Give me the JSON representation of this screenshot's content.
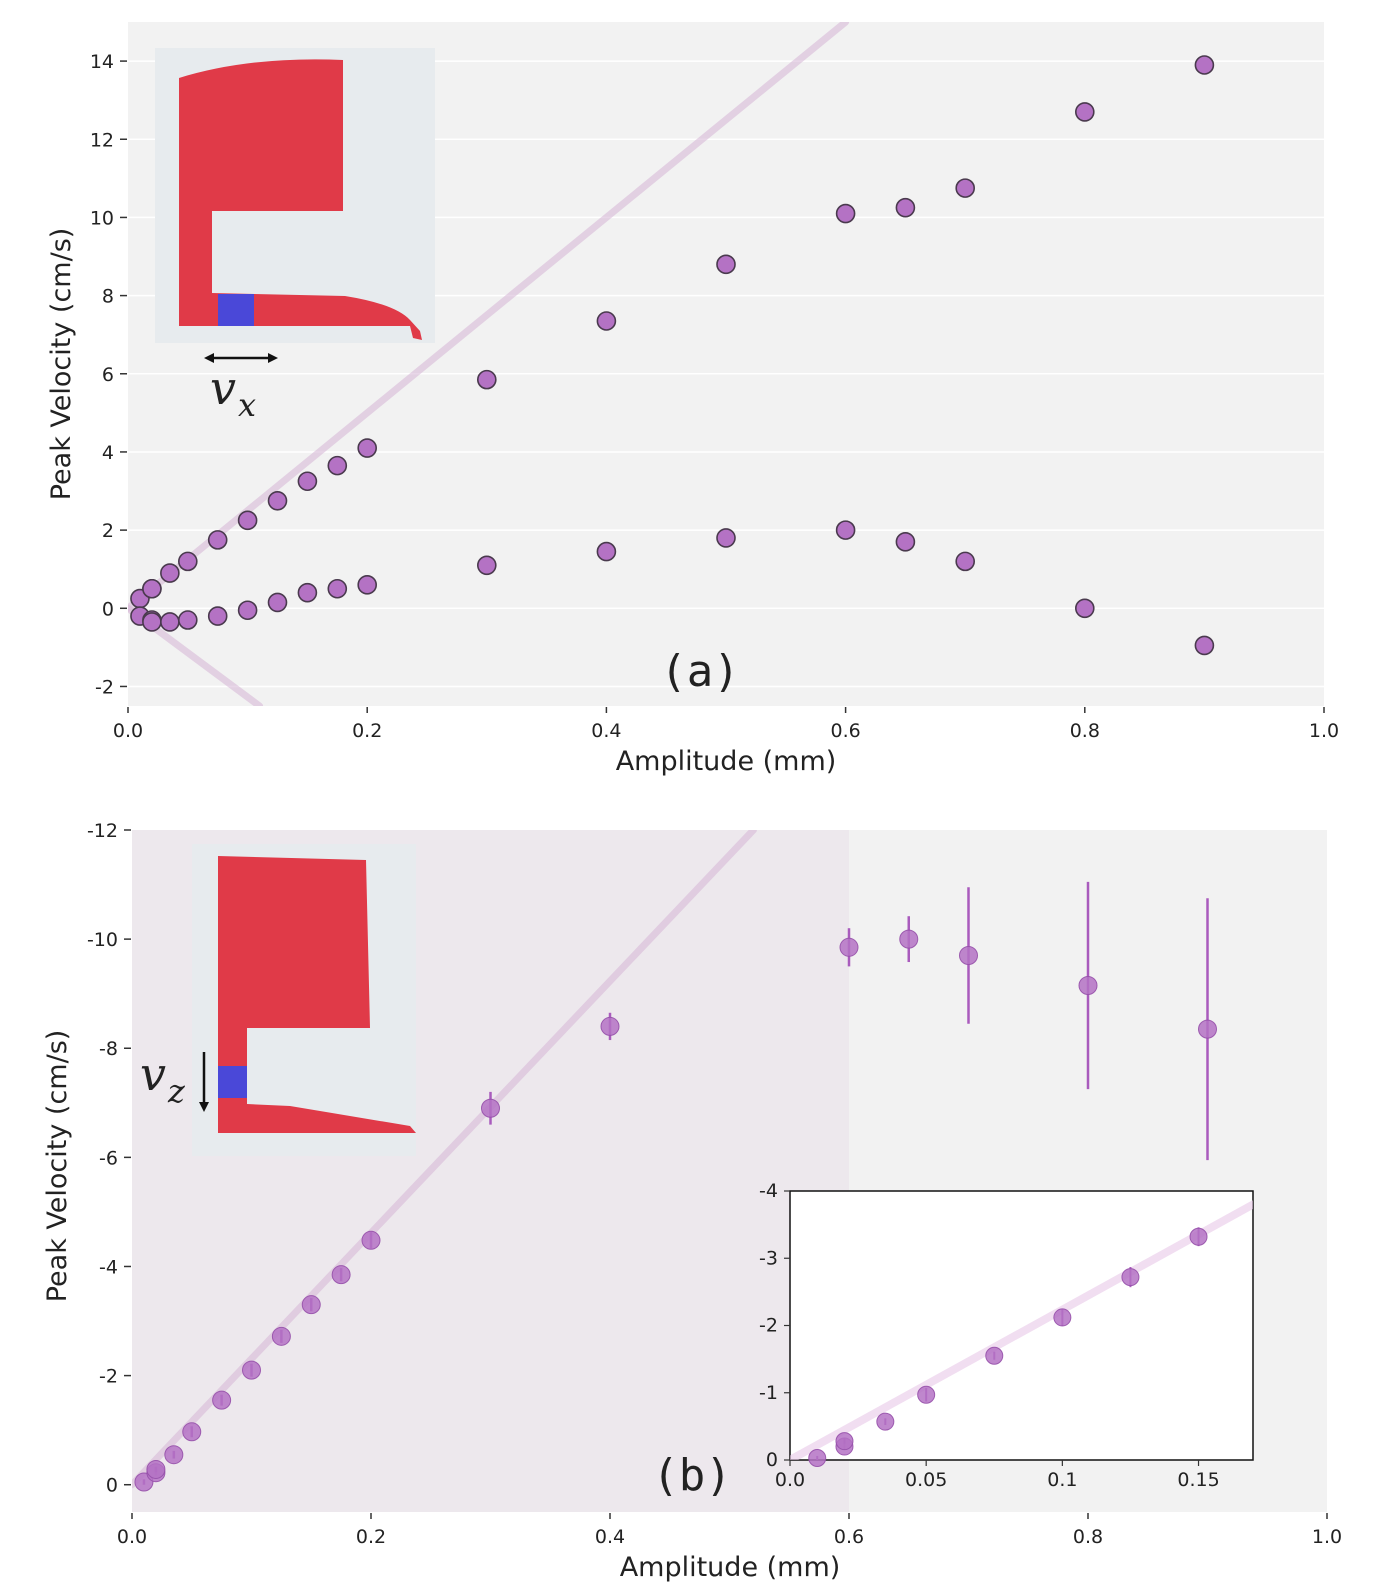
{
  "chart_data": [
    {
      "type": "scatter",
      "panel_label": "(a)",
      "xlabel": "Amplitude (mm)",
      "ylabel": "Peak Velocity (cm/s)",
      "xlim": [
        0,
        1.0
      ],
      "ylim": [
        -2.5,
        15
      ],
      "xticks": [
        "0.0",
        "0.2",
        "0.4",
        "0.6",
        "0.8",
        "1.0"
      ],
      "yticks": [
        "-2",
        "0",
        "2",
        "4",
        "6",
        "8",
        "10",
        "12",
        "14"
      ],
      "grid": "horizontal",
      "inset_symbol": "v",
      "inset_subscript": "x",
      "reference_lines": [
        {
          "x": [
            0,
            0.6
          ],
          "y": [
            0,
            15
          ]
        },
        {
          "x": [
            0,
            0.11
          ],
          "y": [
            0,
            -2.5
          ]
        }
      ],
      "series": [
        {
          "x": [
            0.01,
            0.02,
            0.02,
            0.035,
            0.05,
            0.075,
            0.1,
            0.125,
            0.15,
            0.175,
            0.2,
            0.3,
            0.4,
            0.5,
            0.6,
            0.65,
            0.7,
            0.8,
            0.9
          ],
          "y": [
            0.25,
            0.5,
            0.5,
            0.9,
            1.2,
            1.75,
            2.25,
            2.75,
            3.25,
            3.65,
            4.1,
            5.85,
            7.35,
            8.8,
            10.1,
            10.25,
            10.75,
            12.7,
            13.9
          ]
        },
        {
          "x": [
            0.01,
            0.02,
            0.02,
            0.035,
            0.05,
            0.075,
            0.1,
            0.125,
            0.15,
            0.175,
            0.2,
            0.3,
            0.4,
            0.5,
            0.6,
            0.65,
            0.7,
            0.8,
            0.9
          ],
          "y": [
            -0.2,
            -0.3,
            -0.35,
            -0.35,
            -0.3,
            -0.2,
            -0.05,
            0.15,
            0.4,
            0.5,
            0.6,
            1.1,
            1.45,
            1.8,
            2.0,
            1.7,
            1.2,
            0.0,
            -0.95
          ]
        }
      ]
    },
    {
      "type": "scatter",
      "panel_label": "(b)",
      "xlabel": "Amplitude (mm)",
      "ylabel": "Peak Velocity (cm/s)",
      "xlim": [
        0,
        1.0
      ],
      "ylim": [
        0.5,
        -12
      ],
      "xticks": [
        "0.0",
        "0.2",
        "0.4",
        "0.6",
        "0.8",
        "1.0"
      ],
      "yticks": [
        "0",
        "-2",
        "-4",
        "-6",
        "-8",
        "-10",
        "-12"
      ],
      "shaded_region": [
        0,
        0.6
      ],
      "inset_symbol": "v",
      "inset_subscript": "z",
      "reference_line": {
        "x": [
          0,
          0.52
        ],
        "y": [
          0,
          -12
        ]
      },
      "series": [
        {
          "x": [
            0.01,
            0.02,
            0.02,
            0.035,
            0.05,
            0.075,
            0.1,
            0.125,
            0.15,
            0.175,
            0.2,
            0.3,
            0.4,
            0.6,
            0.65,
            0.7,
            0.8,
            0.9
          ],
          "y": [
            -0.05,
            -0.22,
            -0.28,
            -0.55,
            -0.97,
            -1.55,
            -2.1,
            -2.72,
            -3.3,
            -3.85,
            -4.48,
            -6.9,
            -8.4,
            -9.85,
            -10.0,
            -9.7,
            -9.15,
            -8.35
          ],
          "err": [
            0.05,
            0.05,
            0.05,
            0.07,
            0.1,
            0.1,
            0.12,
            0.12,
            0.12,
            0.12,
            0.15,
            0.3,
            0.25,
            0.35,
            0.42,
            1.25,
            1.9,
            2.4
          ]
        }
      ],
      "inset": {
        "xlim": [
          0,
          0.17
        ],
        "ylim": [
          0,
          -4
        ],
        "xticks": [
          "0.0",
          "0.05",
          "0.1",
          "0.15"
        ],
        "yticks": [
          "0",
          "-1",
          "-2",
          "-3",
          "-4"
        ],
        "reference_line": {
          "x": [
            0,
            0.17
          ],
          "y": [
            0,
            -3.8
          ]
        },
        "x": [
          0.01,
          0.02,
          0.02,
          0.035,
          0.05,
          0.075,
          0.1,
          0.125,
          0.15
        ],
        "y": [
          -0.03,
          -0.2,
          -0.28,
          -0.57,
          -0.97,
          -1.55,
          -2.12,
          -2.72,
          -3.32
        ],
        "err": [
          0.03,
          0.04,
          0.04,
          0.05,
          0.1,
          0.06,
          0.13,
          0.15,
          0.14
        ]
      }
    }
  ]
}
